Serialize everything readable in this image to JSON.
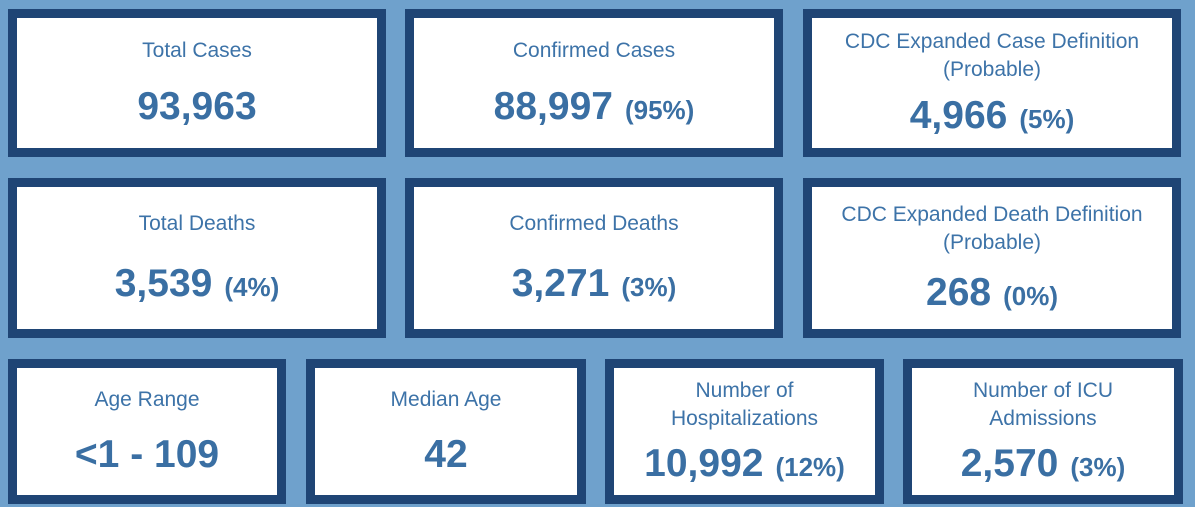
{
  "cards": {
    "total_cases": {
      "title": "Total Cases",
      "value": "93,963",
      "pct": ""
    },
    "confirmed_cases": {
      "title": "Confirmed Cases",
      "value": "88,997",
      "pct": "(95%)"
    },
    "probable_cases": {
      "title_line1": "CDC Expanded Case Definition",
      "title_line2": "(Probable)",
      "value": "4,966",
      "pct": "(5%)"
    },
    "total_deaths": {
      "title": "Total Deaths",
      "value": "3,539",
      "pct": "(4%)"
    },
    "confirmed_deaths": {
      "title": "Confirmed Deaths",
      "value": "3,271",
      "pct": "(3%)"
    },
    "probable_deaths": {
      "title_line1": "CDC Expanded Death Definition",
      "title_line2": "(Probable)",
      "value": "268",
      "pct": "(0%)"
    },
    "age_range": {
      "title": "Age Range",
      "value": "<1 - 109"
    },
    "median_age": {
      "title": "Median Age",
      "value": "42"
    },
    "hospitalizations": {
      "title_line1": "Number of",
      "title_line2": "Hospitalizations",
      "value": "10,992",
      "pct": "(12%)"
    },
    "icu_admissions": {
      "title_line1": "Number of ICU",
      "title_line2": "Admissions",
      "value": "2,570",
      "pct": "(3%)"
    }
  },
  "colors": {
    "background": "#6fa1cc",
    "card_border": "#1f4575",
    "text": "#3a6fa3"
  }
}
